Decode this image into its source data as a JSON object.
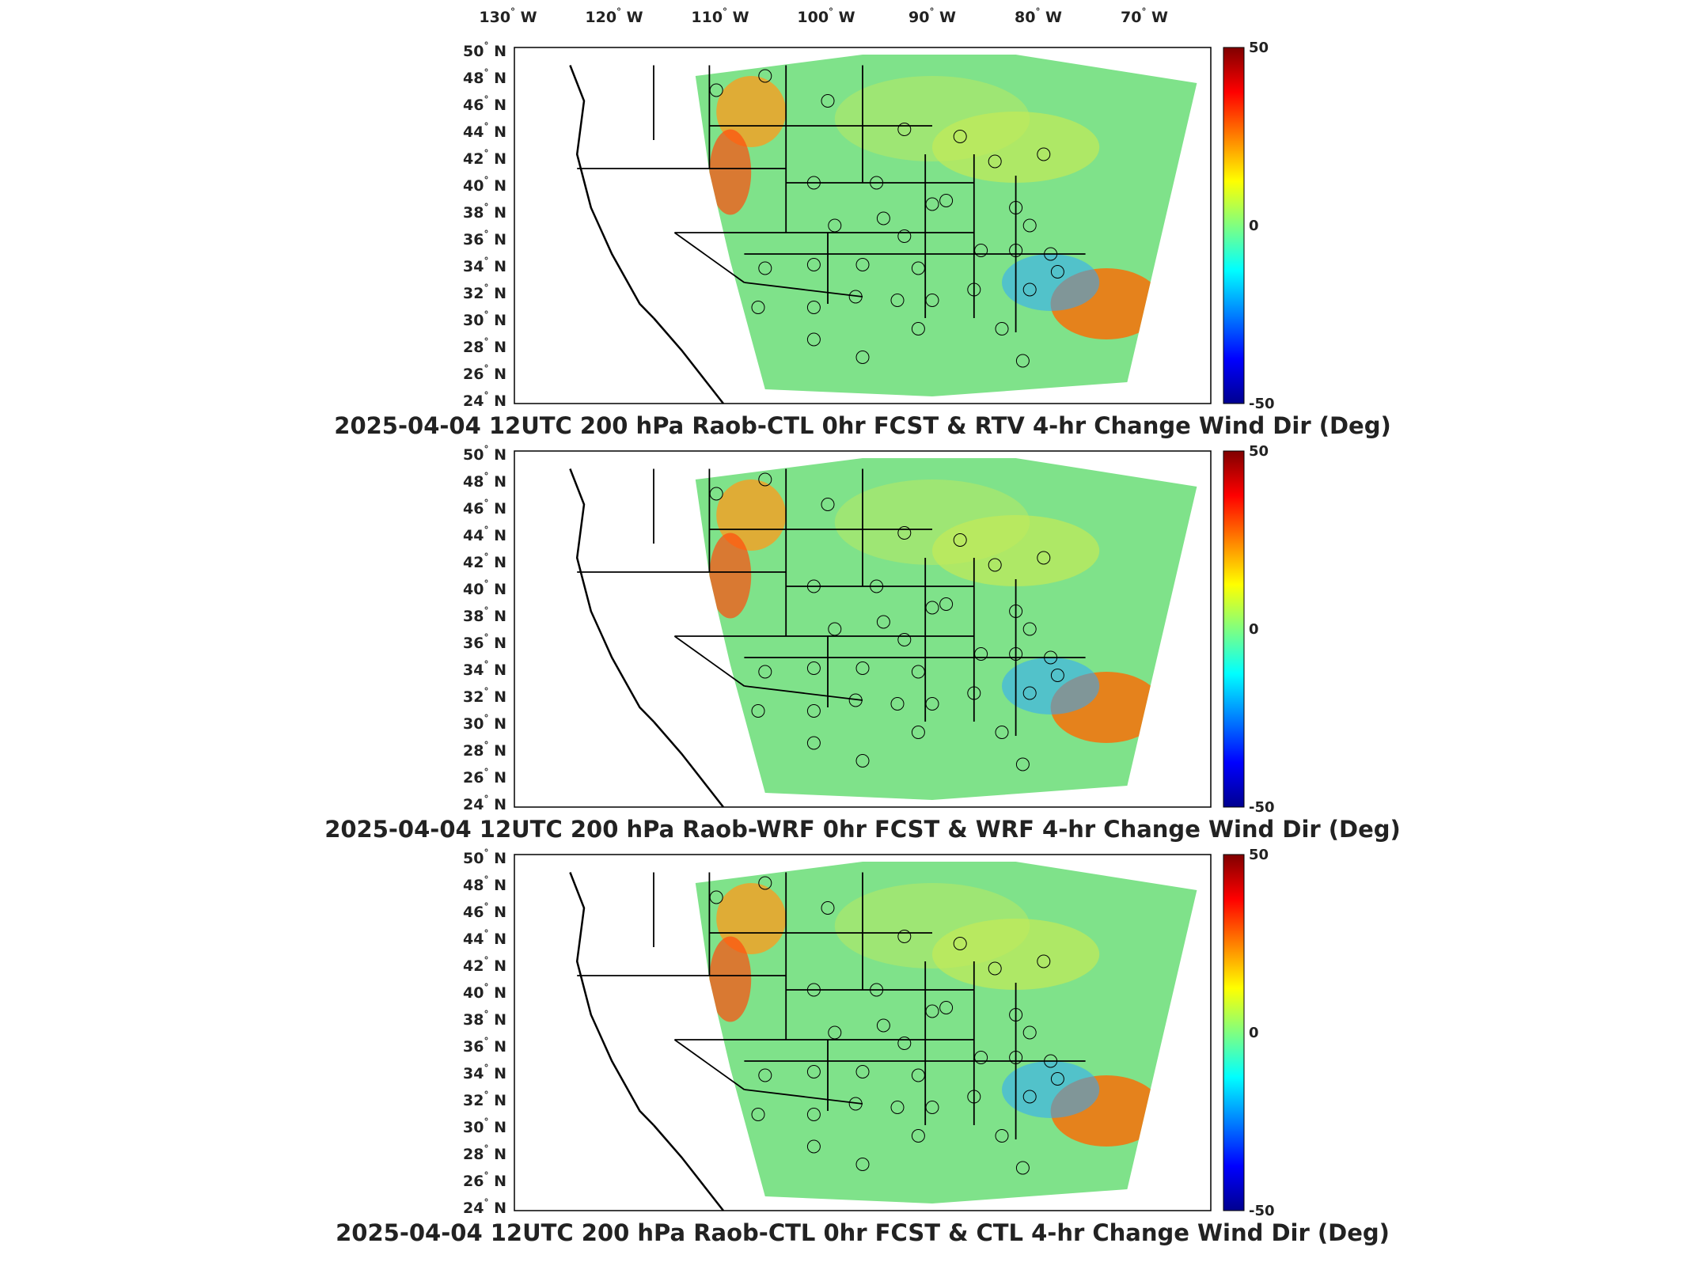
{
  "lon_labels": [
    "130",
    "120",
    "110",
    "100",
    "90",
    "80",
    "70"
  ],
  "lon_hemisphere": "W",
  "lat_labels": [
    "50",
    "48",
    "46",
    "44",
    "42",
    "40",
    "38",
    "36",
    "34",
    "32",
    "30",
    "28",
    "26",
    "24"
  ],
  "lat_hemisphere": "N",
  "degree_symbol": "°",
  "colorbar": {
    "max_label": "50",
    "mid_label": "0",
    "min_label": "-50",
    "colors": [
      "#00008f",
      "#0000ff",
      "#0080ff",
      "#00ffff",
      "#80ff80",
      "#ffff00",
      "#ff8000",
      "#ff0000",
      "#800000"
    ]
  },
  "land_colors": {
    "outside_domain": "#ffffff",
    "field_base": "#7fe28a",
    "border": "#000000",
    "station_marker": "#000000"
  },
  "panels": [
    {
      "title": "2025-04-04 12UTC 200 hPa Raob-CTL 0hr FCST & RTV 4-hr Change Wind Dir (Deg)"
    },
    {
      "title": "2025-04-04 12UTC 200 hPa Raob-WRF 0hr FCST & WRF 4-hr Change Wind Dir (Deg)"
    },
    {
      "title": "2025-04-04 12UTC 200 hPa Raob-CTL 0hr FCST & CTL 4-hr Change Wind Dir (Deg)"
    }
  ]
}
